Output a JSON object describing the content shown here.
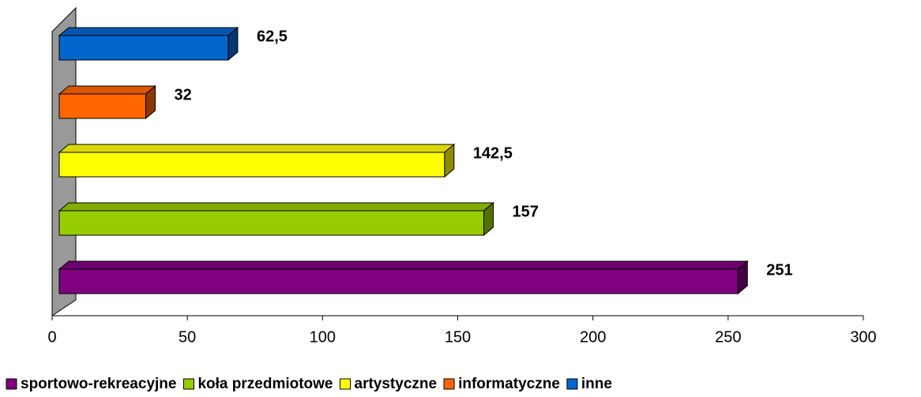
{
  "chart_data": {
    "type": "bar",
    "orientation": "horizontal",
    "series": [
      {
        "name": "sportowo-rekreacyjne",
        "color": "#800080",
        "values": [
          251
        ],
        "value_labels": [
          "251"
        ]
      },
      {
        "name": "koła przedmiotowe",
        "color": "#99cc00",
        "values": [
          157
        ],
        "value_labels": [
          "157"
        ]
      },
      {
        "name": "artystyczne",
        "color": "#ffff00",
        "values": [
          142.5
        ],
        "value_labels": [
          "142,5"
        ]
      },
      {
        "name": "informatyczne",
        "color": "#ff6600",
        "values": [
          32
        ],
        "value_labels": [
          "32"
        ]
      },
      {
        "name": "inne",
        "color": "#0066cc",
        "values": [
          62.5
        ],
        "value_labels": [
          "62,5"
        ]
      }
    ],
    "xlim": [
      0,
      300
    ],
    "xticks": [
      0,
      50,
      100,
      150,
      200,
      250,
      300
    ],
    "legend": "bottom"
  }
}
